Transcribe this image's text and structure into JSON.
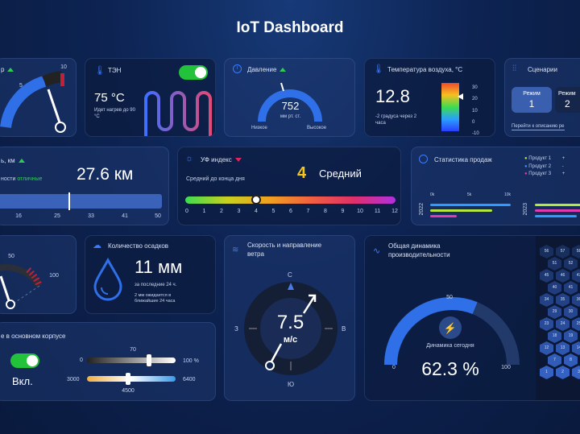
{
  "title": "IoT Dashboard",
  "speed_card": {
    "label": "р",
    "scale": [
      "5",
      "10"
    ],
    "value_fraction": 0.8
  },
  "heater": {
    "label": "ТЭН",
    "value": "75 °C",
    "note": "Идет нагрев до 90 °C",
    "toggle_on": true
  },
  "pressure": {
    "label": "Давление",
    "value": "752",
    "unit": "мм рт. ст.",
    "low": "Низкое",
    "high": "Высокое"
  },
  "air_temp": {
    "label": "Температура воздуха, °C",
    "value": "12.8",
    "note": "-2 градуса через 2 часа",
    "scale": [
      "30",
      "20",
      "10",
      "0",
      "-10"
    ],
    "marker": 20
  },
  "scenarios": {
    "label": "Сценарии",
    "modes": [
      {
        "label": "Режим",
        "num": "1",
        "active": true
      },
      {
        "label": "Режим",
        "num": "2",
        "active": false
      }
    ],
    "link": "Перейти к описанию ре"
  },
  "visibility": {
    "label": "ь, км",
    "note_prefix": "ности",
    "note_status": "отличные",
    "value": "27.6 км",
    "ticks": [
      "16",
      "25",
      "33",
      "41",
      "50"
    ],
    "marker": 27.6
  },
  "uv": {
    "label": "УФ индекс",
    "note": "Средний до конца дня",
    "value": "4",
    "level": "Средний",
    "ticks": [
      "0",
      "1",
      "2",
      "3",
      "4",
      "5",
      "6",
      "7",
      "8",
      "9",
      "10",
      "11",
      "12"
    ]
  },
  "sales": {
    "label": "Статистика продаж",
    "legend": [
      {
        "name": "Продукт 1",
        "color": "#b5e83a"
      },
      {
        "name": "Продукт 2",
        "color": "#2f9bff"
      },
      {
        "name": "Продукт 3",
        "color": "#e33ab0"
      }
    ],
    "legend_values": [
      "+",
      "-",
      "+"
    ],
    "years": [
      "2022",
      "2023"
    ],
    "axis": [
      "0k",
      "5k",
      "10k"
    ]
  },
  "gauge2": {
    "scale": [
      "50",
      "100"
    ]
  },
  "precip": {
    "label": "Количество осадков",
    "value": "11 мм",
    "period": "за последние 24 ч.",
    "forecast": "2 мм ожидается в ближайшие 24 часа"
  },
  "wind": {
    "label": "Скорость и направление ветра",
    "value": "7.5",
    "unit": "м/с",
    "n": "С",
    "s": "Ю",
    "w": "З",
    "e": "В"
  },
  "lighting": {
    "label": "е в основном корпусе",
    "state": "Вкл.",
    "brightness": {
      "min": "0",
      "max": "100 %",
      "value": "70"
    },
    "temp": {
      "min": "3000",
      "max": "6400",
      "value": "4500"
    }
  },
  "productivity": {
    "label": "Общая динамика производительности",
    "mid": "50",
    "min": "0",
    "max": "100",
    "caption": "Динамика сегодня",
    "value": "62.3 %",
    "fraction": 0.623
  },
  "hexes": [
    [
      "56",
      "57",
      "58"
    ],
    [
      "51",
      "52"
    ],
    [
      "45",
      "46",
      "47"
    ],
    [
      "40",
      "41"
    ],
    [
      "34",
      "35",
      "36"
    ],
    [
      "29",
      "30"
    ],
    [
      "23",
      "24",
      "25"
    ],
    [
      "18",
      "19"
    ],
    [
      "12",
      "13",
      "14"
    ],
    [
      "7",
      "8"
    ],
    [
      "1",
      "2",
      "3"
    ]
  ]
}
